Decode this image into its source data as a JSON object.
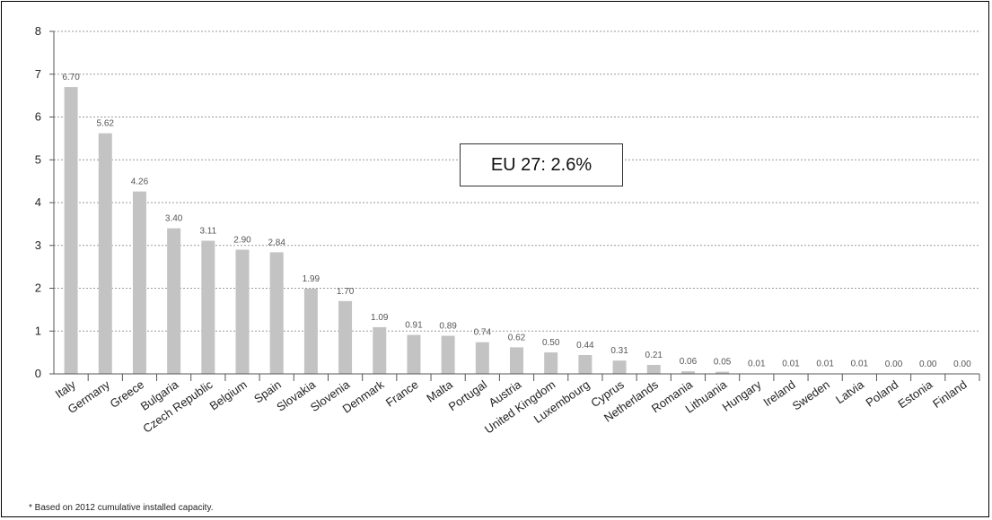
{
  "chart_data": {
    "type": "bar",
    "categories": [
      "Italy",
      "Germany",
      "Greece",
      "Bulgaria",
      "Czech Republic",
      "Belgium",
      "Spain",
      "Slovakia",
      "Slovenia",
      "Denmark",
      "France",
      "Malta",
      "Portugal",
      "Austria",
      "United Kingdom",
      "Luxembourg",
      "Cyprus",
      "Netherlands",
      "Romania",
      "Lithuania",
      "Hungary",
      "Ireland",
      "Sweden",
      "Latvia",
      "Poland",
      "Estonia",
      "Finland"
    ],
    "values": [
      6.7,
      5.62,
      4.26,
      3.4,
      3.11,
      2.9,
      2.84,
      1.99,
      1.7,
      1.09,
      0.91,
      0.89,
      0.74,
      0.62,
      0.5,
      0.44,
      0.31,
      0.21,
      0.06,
      0.05,
      0.01,
      0.01,
      0.01,
      0.01,
      0.0,
      0.0,
      0.0
    ],
    "value_labels": [
      "6.70",
      "5.62",
      "4.26",
      "3.40",
      "3.11",
      "2.90",
      "2.84",
      "1.99",
      "1.70",
      "1.09",
      "0.91",
      "0.89",
      "0.74",
      "0.62",
      "0.50",
      "0.44",
      "0.31",
      "0.21",
      "0.06",
      "0.05",
      "0.01",
      "0.01",
      "0.01",
      "0.01",
      "0.00",
      "0.00",
      "0.00"
    ],
    "yticks": [
      "0",
      "1",
      "2",
      "3",
      "4",
      "5",
      "6",
      "7",
      "8"
    ],
    "ylim": [
      0,
      8
    ],
    "grid": true,
    "annotation": "EU 27: 2.6%",
    "footnote": "* Based on 2012 cumulative installed capacity.",
    "colors": {
      "bar": "#c3c3c3",
      "grid": "#9a9a9a",
      "axis": "#555555"
    }
  }
}
